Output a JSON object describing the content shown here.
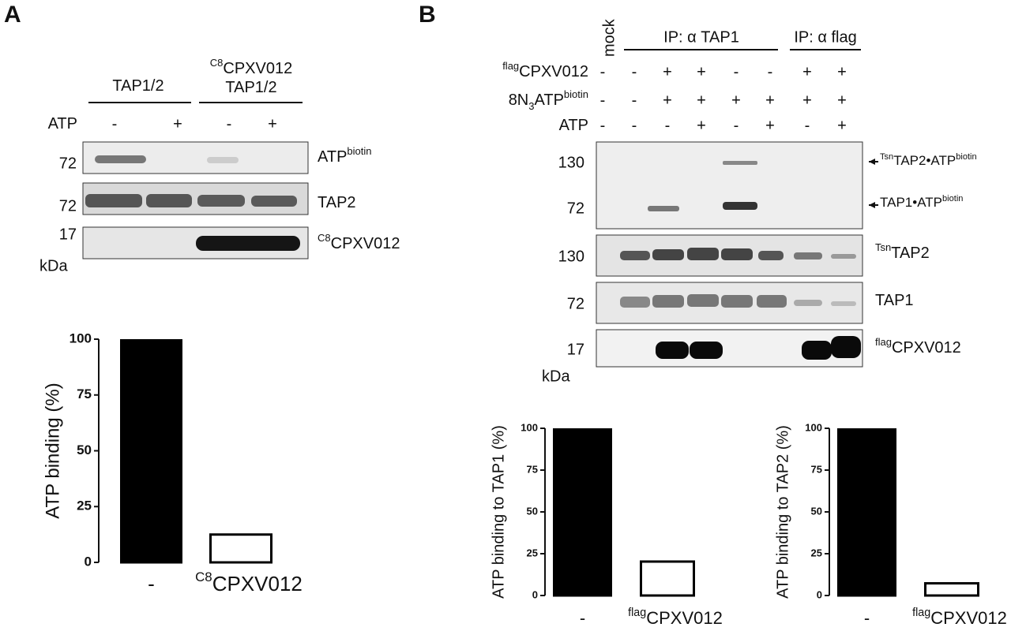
{
  "panels": {
    "a": "A",
    "b": "B"
  },
  "blot_a": {
    "groups": [
      {
        "lines": [
          [
            {
              "t": "TAP1/2"
            }
          ]
        ]
      },
      {
        "lines": [
          [
            {
              "t": "C8",
              "s": "sup"
            },
            {
              "t": "CPXV012"
            }
          ],
          [
            {
              "t": "TAP1/2"
            }
          ]
        ]
      }
    ],
    "rows": [
      {
        "label": [
          {
            "t": "ATP"
          }
        ],
        "signs": [
          "-",
          "+",
          "-",
          "+"
        ]
      }
    ],
    "markers": [
      72,
      72,
      17
    ],
    "unit": "kDa",
    "labels": [
      [
        {
          "t": "ATP"
        },
        {
          "t": "biotin",
          "s": "sup"
        }
      ],
      [
        {
          "t": "TAP2"
        }
      ],
      [
        {
          "t": "C8",
          "s": "sup"
        },
        {
          "t": "CPXV012"
        }
      ]
    ]
  },
  "blot_b": {
    "mock": "mock",
    "groups": [
      "IP: α TAP1",
      "IP: α flag"
    ],
    "rows": [
      {
        "label": [
          {
            "t": "flag",
            "s": "sup"
          },
          {
            "t": "CPXV012"
          }
        ],
        "signs": [
          "-",
          "-",
          "+",
          "+",
          "-",
          "-",
          "+",
          "+"
        ]
      },
      {
        "label": [
          {
            "t": "8N"
          },
          {
            "t": "3",
            "s": "sub"
          },
          {
            "t": "ATP"
          },
          {
            "t": "biotin",
            "s": "sup"
          }
        ],
        "signs": [
          "-",
          "-",
          "+",
          "+",
          "+",
          "+",
          "+",
          "+"
        ]
      },
      {
        "label": [
          {
            "t": "ATP"
          }
        ],
        "signs": [
          "-",
          "-",
          "-",
          "+",
          "-",
          "+",
          "-",
          "+"
        ]
      }
    ],
    "markers": [
      [
        130,
        72
      ],
      [
        130
      ],
      [
        72
      ],
      [
        17
      ]
    ],
    "unit": "kDa",
    "labels": [
      [
        [
          {
            "t": "Tsn",
            "s": "sup"
          },
          {
            "t": "TAP2•ATP"
          },
          {
            "t": "biotin",
            "s": "sup"
          }
        ],
        [
          {
            "t": "TAP1•ATP"
          },
          {
            "t": "biotin",
            "s": "sup"
          }
        ]
      ],
      [
        [
          {
            "t": "Tsn",
            "s": "sup"
          },
          {
            "t": "TAP2"
          }
        ]
      ],
      [
        [
          {
            "t": "TAP1"
          }
        ]
      ],
      [
        [
          {
            "t": "flag",
            "s": "sup"
          },
          {
            "t": "CPXV012"
          }
        ]
      ]
    ]
  },
  "chart_data": [
    {
      "type": "bar",
      "y_label": "ATP binding (%)",
      "categories": [
        "-",
        [
          {
            "t": "C8",
            "s": "sup"
          },
          {
            "t": "CPXV012"
          }
        ]
      ],
      "values": [
        100,
        13
      ],
      "colors": [
        "#000000",
        "#ffffff"
      ],
      "edge_color": "#000000",
      "ylim": [
        0,
        100
      ],
      "yticks": [
        0,
        25,
        50,
        75,
        100
      ]
    },
    {
      "type": "bar",
      "y_label": "ATP binding to TAP1 (%)",
      "categories": [
        "-",
        [
          {
            "t": "flag",
            "s": "sup"
          },
          {
            "t": "CPXV012"
          }
        ]
      ],
      "values": [
        100,
        21
      ],
      "colors": [
        "#000000",
        "#ffffff"
      ],
      "edge_color": "#000000",
      "ylim": [
        0,
        100
      ],
      "yticks": [
        0,
        25,
        50,
        75,
        100
      ]
    },
    {
      "type": "bar",
      "y_label": "ATP binding to TAP2 (%)",
      "categories": [
        "-",
        [
          {
            "t": "flag",
            "s": "sup"
          },
          {
            "t": "CPXV012"
          }
        ]
      ],
      "values": [
        100,
        8
      ],
      "colors": [
        "#000000",
        "#ffffff"
      ],
      "edge_color": "#000000",
      "ylim": [
        0,
        100
      ],
      "yticks": [
        0,
        25,
        50,
        75,
        100
      ]
    }
  ]
}
